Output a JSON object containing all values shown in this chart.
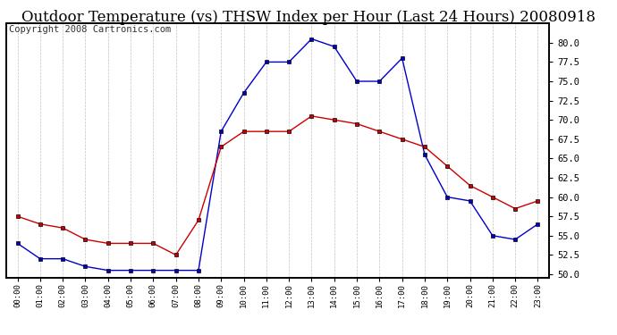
{
  "title": "Outdoor Temperature (vs) THSW Index per Hour (Last 24 Hours) 20080918",
  "copyright": "Copyright 2008 Cartronics.com",
  "hours": [
    "00:00",
    "01:00",
    "02:00",
    "03:00",
    "04:00",
    "05:00",
    "06:00",
    "07:00",
    "08:00",
    "09:00",
    "10:00",
    "11:00",
    "12:00",
    "13:00",
    "14:00",
    "15:00",
    "16:00",
    "17:00",
    "18:00",
    "19:00",
    "20:00",
    "21:00",
    "22:00",
    "23:00"
  ],
  "temp_red": [
    57.5,
    56.5,
    56.0,
    54.5,
    54.0,
    54.0,
    54.0,
    52.5,
    57.0,
    66.5,
    68.5,
    68.5,
    68.5,
    70.5,
    70.0,
    69.5,
    68.5,
    67.5,
    66.5,
    64.0,
    61.5,
    60.0,
    58.5,
    59.5
  ],
  "thsw_blue": [
    54.0,
    52.0,
    52.0,
    51.0,
    50.5,
    50.5,
    50.5,
    50.5,
    50.5,
    68.5,
    73.5,
    77.5,
    77.5,
    80.5,
    79.5,
    75.0,
    75.0,
    78.0,
    65.5,
    60.0,
    59.5,
    55.0,
    54.5,
    56.5
  ],
  "ylim": [
    49.5,
    82.5
  ],
  "yticks": [
    50.0,
    52.5,
    55.0,
    57.5,
    60.0,
    62.5,
    65.0,
    67.5,
    70.0,
    72.5,
    75.0,
    77.5,
    80.0
  ],
  "temp_color": "#cc0000",
  "thsw_color": "#0000cc",
  "bg_color": "#ffffff",
  "grid_color": "#bbbbbb",
  "title_fontsize": 12,
  "copyright_fontsize": 7.5
}
